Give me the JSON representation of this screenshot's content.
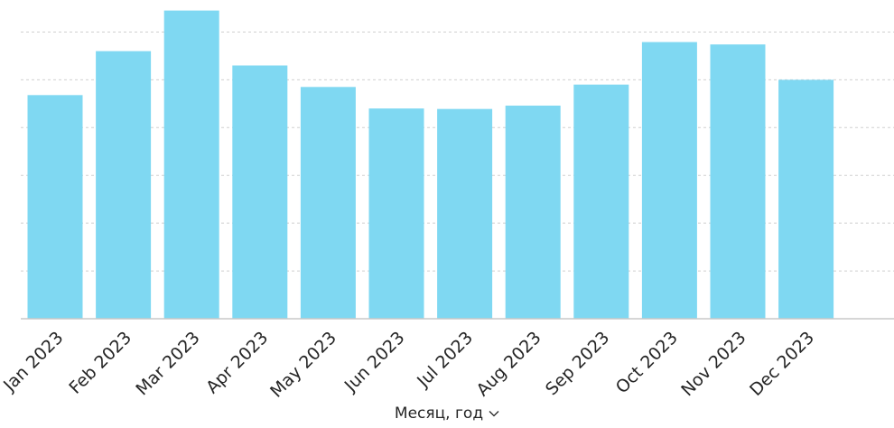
{
  "chart_data": {
    "type": "bar",
    "categories": [
      "Jan 2023",
      "Feb 2023",
      "Mar 2023",
      "Apr 2023",
      "May 2023",
      "Jun 2023",
      "Jul 2023",
      "Aug 2023",
      "Sep 2023",
      "Oct 2023",
      "Nov 2023",
      "Dec 2023"
    ],
    "values": [
      4.68,
      5.6,
      6.45,
      5.3,
      4.85,
      4.4,
      4.39,
      4.46,
      4.9,
      5.79,
      5.74,
      5.0
    ],
    "xlabel": "Месяц, год",
    "ylim": [
      0,
      6.5
    ],
    "grid": true,
    "bar_color": "#7fd8f2"
  },
  "icons": {
    "xlabel_dropdown": "chevron-down-icon"
  }
}
